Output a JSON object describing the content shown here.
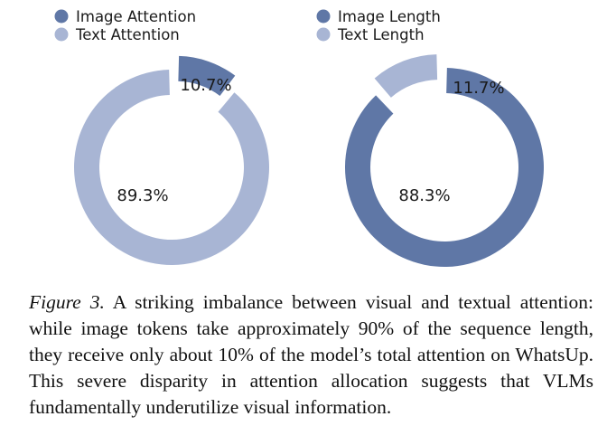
{
  "chart_data": [
    {
      "type": "pie",
      "style": "donut",
      "categories": [
        "Image Attention",
        "Text Attention"
      ],
      "values": [
        10.7,
        89.3
      ],
      "labels": [
        "10.7%",
        "89.3%"
      ],
      "colors": [
        "#5f77a6",
        "#a8b5d4"
      ],
      "legend_position": "top-left"
    },
    {
      "type": "pie",
      "style": "donut",
      "categories": [
        "Image Length",
        "Text Length"
      ],
      "values": [
        88.3,
        11.7
      ],
      "labels": [
        "88.3%",
        "11.7%"
      ],
      "colors": [
        "#5f77a6",
        "#a8b5d4"
      ],
      "legend_position": "top-left"
    }
  ],
  "caption": {
    "figure_label": "Figure 3.",
    "text": "A striking imbalance between visual and textual attention: while image tokens take approximately 90% of the sequence length, they receive only about 10% of the model’s total attention on WhatsUp. This severe disparity in attention allocation suggests that VLMs fundamentally underutilize visual information."
  }
}
